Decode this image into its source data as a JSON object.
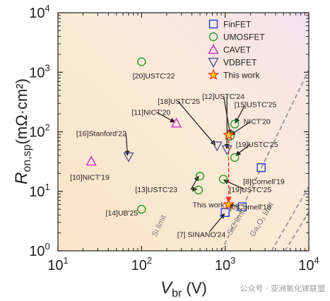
{
  "chart_data": {
    "type": "scatter",
    "xscale": "log",
    "yscale": "log",
    "xlim": [
      10,
      10000
    ],
    "ylim": [
      1,
      10000
    ],
    "x_ticks": [
      {
        "value": 10,
        "base": "10",
        "exp": "1"
      },
      {
        "value": 100,
        "base": "10",
        "exp": "2"
      },
      {
        "value": 1000,
        "base": "10",
        "exp": "3"
      },
      {
        "value": 10000,
        "base": "10",
        "exp": "4"
      }
    ],
    "y_ticks": [
      {
        "value": 1,
        "base": "10",
        "exp": "0"
      },
      {
        "value": 10,
        "base": "10",
        "exp": "1"
      },
      {
        "value": 100,
        "base": "10",
        "exp": "2"
      },
      {
        "value": 1000,
        "base": "10",
        "exp": "3"
      },
      {
        "value": 10000,
        "base": "10",
        "exp": "4"
      }
    ],
    "xlabel": {
      "main": "V",
      "sub": "br",
      "unit": " (V)"
    },
    "ylabel": {
      "main": "R",
      "sub": "on,sp",
      "unit": "(mΩ·cm²)"
    },
    "legend_position": "top-right",
    "series": [
      {
        "name": "FinFET",
        "marker": "square",
        "color": "#1f3fd1",
        "points": [
          [
            2700,
            25
          ],
          [
            1000,
            4.4
          ],
          [
            1600,
            5.5
          ]
        ]
      },
      {
        "name": "UMOSFET",
        "marker": "circle",
        "color": "#2a9a2a",
        "points": [
          [
            100,
            1500
          ],
          [
            100,
            5
          ],
          [
            500,
            18
          ],
          [
            480,
            10.5
          ],
          [
            950,
            16
          ],
          [
            1150,
            85
          ],
          [
            1300,
            135
          ],
          [
            1300,
            37
          ]
        ]
      },
      {
        "name": "CAVET",
        "marker": "triangle-up",
        "color": "#d42bd4",
        "points": [
          [
            25,
            32
          ],
          [
            260,
            140
          ]
        ]
      },
      {
        "name": "VDBFET",
        "marker": "triangle-down",
        "color": "#555599",
        "points": [
          [
            70,
            38
          ],
          [
            800,
            58
          ],
          [
            1050,
            50
          ]
        ]
      },
      {
        "name": "This work",
        "marker": "star",
        "color": "#ff2a1a",
        "points": [
          [
            1100,
            88
          ],
          [
            1100,
            6
          ]
        ]
      }
    ],
    "annotations": [
      {
        "text": "[20]USTC'22",
        "x": 140,
        "y": 880
      },
      {
        "text": "[11]NICT'20",
        "x": 130,
        "y": 215
      },
      {
        "text": "[18]USTC'25",
        "x": 280,
        "y": 330
      },
      {
        "text": "[12]USTC'24",
        "x": 950,
        "y": 400
      },
      {
        "text": "[15]USTC'25",
        "x": 2300,
        "y": 290
      },
      {
        "text": "NICT'20",
        "x": 2400,
        "y": 150
      },
      {
        "text": "[16]Stanford'22",
        "x": 33,
        "y": 95
      },
      {
        "text": "[19]USTC'25",
        "x": 2400,
        "y": 62
      },
      {
        "text": "[10]NICT'19",
        "x": 24,
        "y": 17.5
      },
      {
        "text": "[8]Cornell'19",
        "x": 2900,
        "y": 14.7
      },
      {
        "text": "[13]USTC'23",
        "x": 150,
        "y": 10.8
      },
      {
        "text": "[19]USTC'25",
        "x": 2000,
        "y": 10.8
      },
      {
        "text": "This work",
        "x": 630,
        "y": 6
      },
      {
        "text": "[6]Cornell'18",
        "x": 2000,
        "y": 5.5
      },
      {
        "text": "[14]UB'25",
        "x": 58,
        "y": 4.4
      },
      {
        "text": "[7] SINANO'24",
        "x": 520,
        "y": 1.9
      }
    ],
    "arrows": [
      {
        "from": [
          150,
          215
        ],
        "to": [
          250,
          145
        ]
      },
      {
        "from": [
          270,
          330
        ],
        "to": [
          760,
          60
        ]
      },
      {
        "from": [
          960,
          390
        ],
        "to": [
          1150,
          90
        ]
      },
      {
        "from": [
          1050,
          390
        ],
        "to": [
          1050,
          52
        ]
      },
      {
        "from": [
          1700,
          270
        ],
        "to": [
          1320,
          140
        ]
      },
      {
        "from": [
          2000,
          148
        ],
        "to": [
          1160,
          88
        ]
      },
      {
        "from": [
          2000,
          62
        ],
        "to": [
          1340,
          40
        ]
      },
      {
        "from": [
          65,
          95
        ],
        "to": [
          68,
          40
        ]
      },
      {
        "from": [
          390,
          10.8
        ],
        "to": [
          480,
          18
        ]
      },
      {
        "from": [
          390,
          10.8
        ],
        "to": [
          460,
          10.8
        ]
      },
      {
        "from": [
          1700,
          10.8
        ],
        "to": [
          960,
          15.5
        ]
      },
      {
        "from": [
          1400,
          5.5
        ],
        "to": [
          1100,
          6.4
        ]
      },
      {
        "from": [
          650,
          2.1
        ],
        "to": [
          980,
          4.2
        ]
      }
    ],
    "this_work_link": {
      "from": [
        1100,
        88
      ],
      "to": [
        1100,
        6.6
      ]
    },
    "limit_lines": [
      {
        "label": "Si limit",
        "points": [
          [
            900,
            1
          ],
          [
            10000,
            1100
          ]
        ],
        "label_at": [
          150,
          1.7
        ]
      },
      {
        "label": "SiC limit",
        "points": [
          [
            3600,
            1
          ],
          [
            10000,
            12
          ]
        ],
        "label_at": [
          1180,
          1.8
        ]
      },
      {
        "label": "Ga₂O₃ limit",
        "points": [
          [
            5200,
            1
          ],
          [
            10000,
            4.5
          ]
        ],
        "label_at": [
          2200,
          1.7
        ]
      }
    ]
  },
  "watermark": {
    "text": "公众号 · 亚洲氧化镓联盟"
  }
}
